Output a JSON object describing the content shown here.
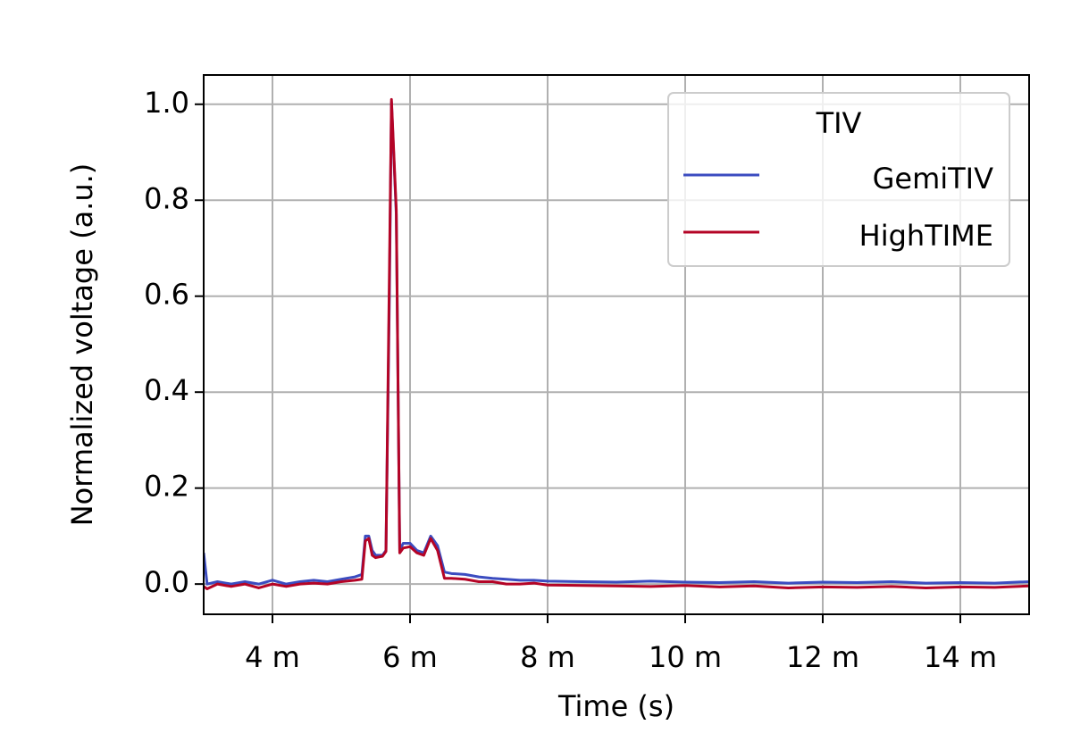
{
  "chart_data": {
    "type": "line",
    "x_label": "Time (s)",
    "y_label": "Normalized voltage (a.u.)",
    "x": [
      0.003,
      0.00305,
      0.0032,
      0.0034,
      0.0036,
      0.0038,
      0.004,
      0.0042,
      0.0044,
      0.0046,
      0.0048,
      0.005,
      0.0052,
      0.0053,
      0.00535,
      0.0054,
      0.00545,
      0.0055,
      0.0056,
      0.00565,
      0.0057,
      0.00573,
      0.0058,
      0.00585,
      0.0059,
      0.006,
      0.0061,
      0.0062,
      0.0063,
      0.0064,
      0.0065,
      0.0066,
      0.0068,
      0.007,
      0.0072,
      0.0074,
      0.0076,
      0.0078,
      0.008,
      0.0085,
      0.009,
      0.0095,
      0.01,
      0.0105,
      0.011,
      0.0115,
      0.012,
      0.0125,
      0.013,
      0.0135,
      0.014,
      0.0145,
      0.015
    ],
    "series": [
      {
        "name": "GemiTIV",
        "color": "#3b4cc0",
        "values": [
          0.065,
          0.0,
          0.005,
          0.0,
          0.005,
          0.0,
          0.008,
          0.0,
          0.005,
          0.008,
          0.005,
          0.01,
          0.015,
          0.02,
          0.1,
          0.1,
          0.07,
          0.06,
          0.06,
          0.07,
          0.6,
          1.005,
          0.77,
          0.07,
          0.085,
          0.085,
          0.07,
          0.065,
          0.1,
          0.08,
          0.025,
          0.022,
          0.02,
          0.015,
          0.012,
          0.01,
          0.008,
          0.008,
          0.006,
          0.005,
          0.004,
          0.006,
          0.004,
          0.003,
          0.005,
          0.002,
          0.004,
          0.003,
          0.005,
          0.002,
          0.003,
          0.002,
          0.005
        ]
      },
      {
        "name": "HighTIME",
        "color": "#b40426",
        "values": [
          -0.005,
          -0.01,
          0.0,
          -0.005,
          0.0,
          -0.008,
          0.0,
          -0.005,
          0.0,
          0.002,
          0.0,
          0.005,
          0.008,
          0.01,
          0.09,
          0.095,
          0.06,
          0.055,
          0.058,
          0.068,
          0.65,
          1.01,
          0.78,
          0.065,
          0.075,
          0.078,
          0.065,
          0.06,
          0.095,
          0.07,
          0.012,
          0.012,
          0.01,
          0.005,
          0.005,
          0.0,
          0.0,
          0.002,
          -0.002,
          -0.003,
          -0.004,
          -0.005,
          -0.003,
          -0.006,
          -0.004,
          -0.008,
          -0.006,
          -0.007,
          -0.005,
          -0.008,
          -0.006,
          -0.007,
          -0.004
        ]
      }
    ],
    "legend_title": "TIV",
    "legend": "upper right",
    "grid": true,
    "xlim": [
      0.003,
      0.015
    ],
    "xticks": [
      {
        "value": 0.004,
        "label": "4 m"
      },
      {
        "value": 0.006,
        "label": "6 m"
      },
      {
        "value": 0.008,
        "label": "8 m"
      },
      {
        "value": 0.01,
        "label": "10 m"
      },
      {
        "value": 0.012,
        "label": "12 m"
      },
      {
        "value": 0.014,
        "label": "14 m"
      }
    ],
    "ylim": [
      -0.063,
      1.061
    ],
    "yticks": [
      {
        "value": 0,
        "label": "0.0"
      },
      {
        "value": 0.2,
        "label": "0.2"
      },
      {
        "value": 0.4,
        "label": "0.4"
      },
      {
        "value": 0.6,
        "label": "0.6"
      },
      {
        "value": 0.8,
        "label": "0.8"
      },
      {
        "value": 1,
        "label": "1.0"
      }
    ]
  }
}
